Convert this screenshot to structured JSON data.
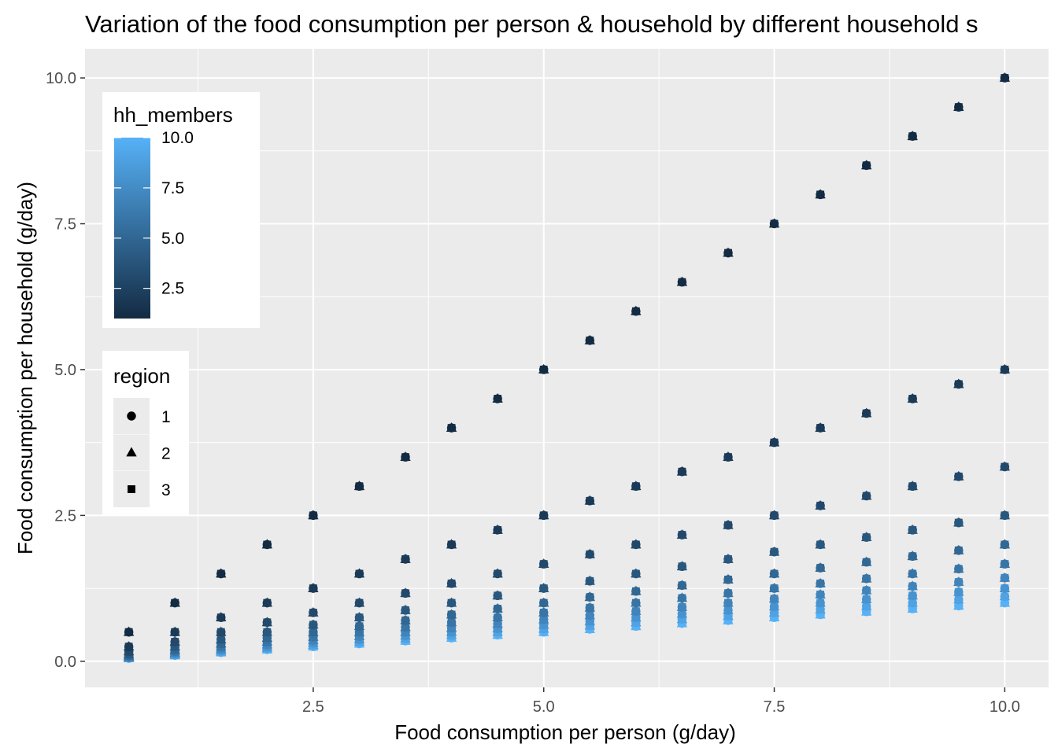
{
  "chart_data": {
    "type": "scatter",
    "title": "Variation of the food consumption per person & household by different household s",
    "xlabel": "Food consumption per person (g/day)",
    "ylabel": "Food consumption per household (g/day)",
    "xlim": [
      0.025,
      10.475
    ],
    "ylim": [
      -0.4475,
      10.5
    ],
    "x_ticks": [
      2.5,
      5.0,
      7.5,
      10.0
    ],
    "y_ticks": [
      0.0,
      2.5,
      5.0,
      7.5,
      10.0
    ],
    "x_tick_labels": [
      "2.5",
      "5.0",
      "7.5",
      "10.0"
    ],
    "y_tick_labels": [
      "0.0",
      "2.5",
      "5.0",
      "7.5",
      "10.0"
    ],
    "grid": true,
    "background": "#ebebeb",
    "color_encoding": "hh_members",
    "shape_encoding": "region",
    "legend_placement": "left-inside",
    "relationship": "y = x / hh_members",
    "x_values": [
      0.5,
      1,
      1.5,
      2,
      2.5,
      3,
      3.5,
      4,
      4.5,
      5,
      5.5,
      6,
      6.5,
      7,
      7.5,
      8,
      8.5,
      9,
      9.5,
      10
    ],
    "hh_members_values": [
      1,
      2,
      3,
      4,
      5,
      6,
      7,
      8,
      9,
      10
    ],
    "region_values": [
      1,
      2,
      3
    ],
    "legend_color": {
      "title": "hh_members",
      "labels": [
        "10.0",
        "7.5",
        "5.0",
        "2.5"
      ],
      "values": [
        10.0,
        7.5,
        5.0,
        2.5
      ],
      "range": [
        1,
        10
      ],
      "color_low": "#132b43",
      "color_high": "#56b1f7"
    },
    "legend_shape": {
      "title": "region",
      "labels": [
        "1",
        "2",
        "3"
      ],
      "shapes": [
        "circle",
        "triangle",
        "square"
      ]
    }
  }
}
